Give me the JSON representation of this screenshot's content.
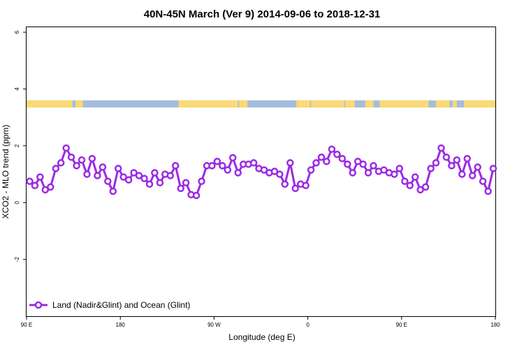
{
  "chart_data": {
    "type": "line",
    "title": "40N-45N March (Ver 9)   2014-09-06 to 2018-12-31",
    "xlabel": "Longitude (deg E)",
    "ylabel": "XCO2 - MLO trend (ppm)",
    "x_ticks": [
      {
        "value": 90,
        "label": "90 E"
      },
      {
        "value": 180,
        "label": "180"
      },
      {
        "value": 270,
        "label": "90 W"
      },
      {
        "value": 360,
        "label": "0"
      },
      {
        "value": 450,
        "label": "90 E"
      },
      {
        "value": 540,
        "label": "180"
      }
    ],
    "y_ticks": [
      {
        "value": -2,
        "label": "-2"
      },
      {
        "value": 0,
        "label": "0"
      },
      {
        "value": 2,
        "label": "2"
      },
      {
        "value": 4,
        "label": "4"
      },
      {
        "value": 6,
        "label": "6"
      }
    ],
    "xlim": [
      90,
      540
    ],
    "ylim": [
      -4,
      6.2
    ],
    "grid": false,
    "land_ocean_band": {
      "y_range": [
        3.35,
        3.6
      ],
      "ocean_color": "#a4bddb",
      "land_color": "#fbd975",
      "land_segments": [
        [
          90,
          134
        ],
        [
          137,
          144
        ],
        [
          236,
          293
        ],
        [
          294,
          302
        ],
        [
          349,
          362
        ],
        [
          363,
          395
        ],
        [
          396,
          405
        ],
        [
          415,
          423
        ],
        [
          429,
          476
        ],
        [
          483,
          496
        ],
        [
          499,
          503
        ],
        [
          510,
          540
        ]
      ]
    },
    "series": [
      {
        "name": "Land (Nadir&Glint) and Ocean (Glint)",
        "color": "#9a2ae6",
        "x": [
          93,
          98,
          103,
          108,
          113,
          118,
          123,
          128,
          133,
          138,
          143,
          148,
          153,
          158,
          163,
          168,
          173,
          178,
          183,
          188,
          193,
          198,
          203,
          208,
          213,
          218,
          223,
          228,
          233,
          238,
          243,
          248,
          253,
          258,
          263,
          268,
          273,
          278,
          283,
          288,
          293,
          298,
          303,
          308,
          313,
          318,
          323,
          328,
          333,
          338,
          343,
          348,
          353,
          358,
          363,
          368,
          373,
          378,
          383,
          388,
          393,
          398,
          403,
          408,
          413,
          418,
          423,
          428,
          433,
          438,
          443,
          448,
          453,
          458,
          463,
          468,
          473,
          478,
          483,
          488,
          493,
          498,
          503,
          508,
          513,
          518,
          523,
          528,
          533,
          538
        ],
        "values": [
          0.75,
          0.6,
          0.9,
          0.45,
          0.55,
          1.2,
          1.4,
          1.92,
          1.6,
          1.3,
          1.5,
          1.0,
          1.55,
          0.95,
          1.25,
          0.75,
          0.4,
          1.2,
          0.9,
          0.8,
          1.05,
          0.95,
          0.85,
          0.65,
          1.05,
          0.7,
          1.0,
          0.95,
          1.3,
          0.5,
          0.7,
          0.28,
          0.25,
          0.75,
          1.3,
          1.3,
          1.45,
          1.3,
          1.15,
          1.58,
          1.05,
          1.35,
          1.35,
          1.4,
          1.2,
          1.15,
          1.05,
          1.1,
          1.0,
          0.65,
          1.4,
          0.5,
          0.65,
          0.6,
          1.15,
          1.4,
          1.6,
          1.45,
          1.88,
          1.7,
          1.55,
          1.35,
          1.05,
          1.45,
          1.35,
          1.05,
          1.3,
          1.1,
          1.15,
          1.05,
          1.0,
          1.2,
          0.75,
          0.6,
          0.9,
          0.45,
          0.55,
          1.2,
          1.4,
          1.92,
          1.6,
          1.3,
          1.5,
          1.0,
          1.55,
          0.95,
          1.25,
          0.75,
          0.4,
          1.2
        ]
      }
    ],
    "legend": {
      "position": "bottom-left"
    }
  }
}
